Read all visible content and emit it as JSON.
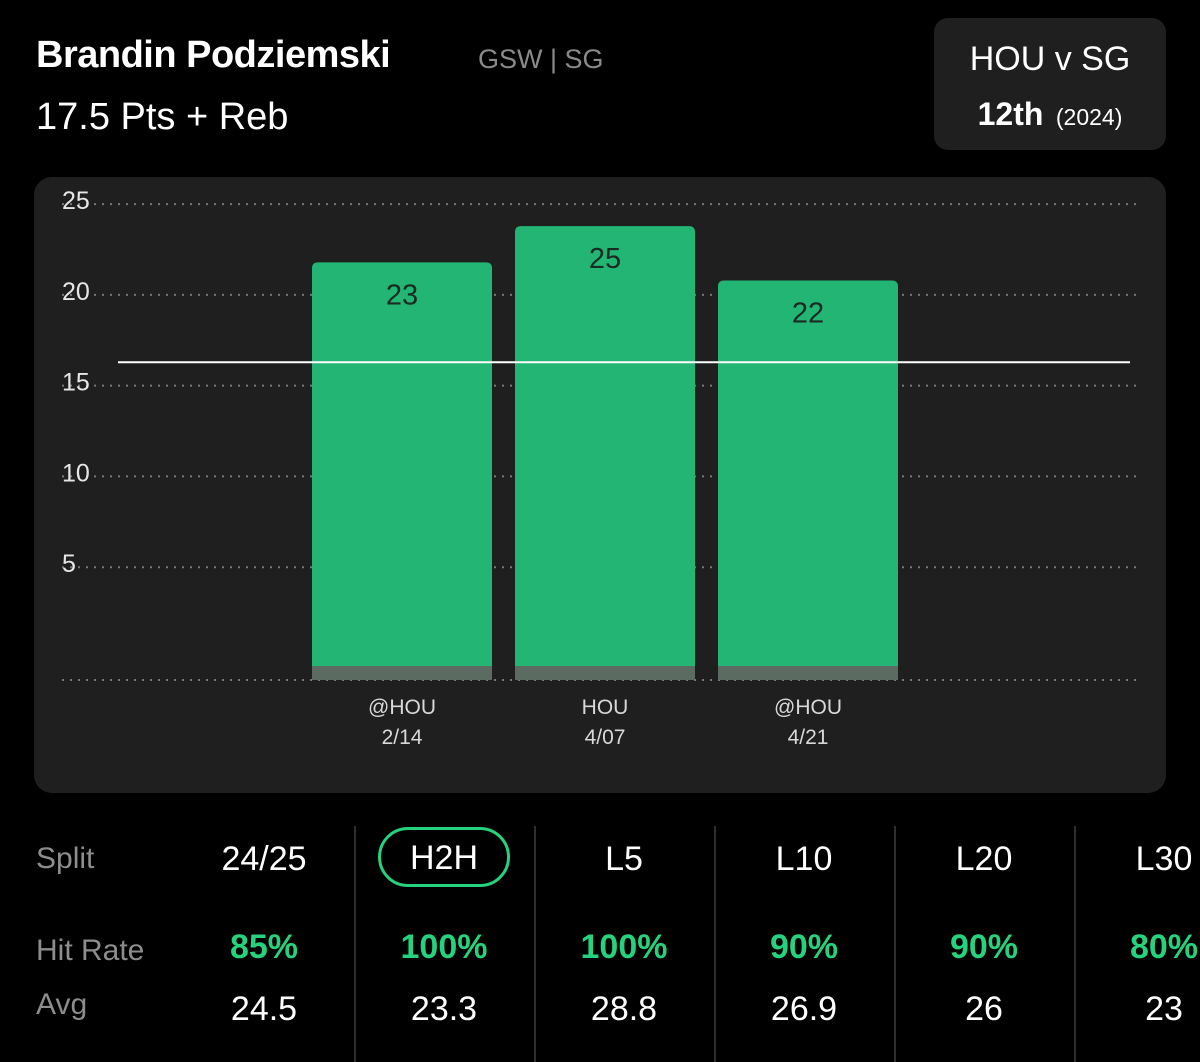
{
  "header": {
    "player_name": "Brandin Podziemski",
    "team_position": "GSW | SG",
    "prop": "17.5 Pts + Reb"
  },
  "matchup": {
    "title": "HOU v SG",
    "rank": "12th",
    "season": "(2024)"
  },
  "colors": {
    "accent": "#25d37e",
    "bar": "#22b573",
    "panel": "#1f1f1f",
    "label": "#8d8d8d"
  },
  "chart_data": {
    "type": "bar",
    "categories": [
      "@HOU 2/14",
      "HOU 4/07",
      "@HOU 4/21"
    ],
    "opponents": [
      "@HOU",
      "HOU",
      "@HOU"
    ],
    "dates": [
      "2/14",
      "4/07",
      "4/21"
    ],
    "values": [
      23,
      25,
      22
    ],
    "data_labels": [
      "23",
      "25",
      "22"
    ],
    "y_ticks": [
      "5",
      "10",
      "15",
      "20",
      "25"
    ],
    "ylim": [
      0,
      25.5
    ],
    "line_value": 17.5,
    "grid": "dotted horizontal"
  },
  "stats": {
    "labels": {
      "split": "Split",
      "hit_rate": "Hit Rate",
      "avg": "Avg"
    },
    "columns": [
      {
        "split": "24/25",
        "hit_rate": "85%",
        "avg": "24.5",
        "selected": false
      },
      {
        "split": "H2H",
        "hit_rate": "100%",
        "avg": "23.3",
        "selected": true
      },
      {
        "split": "L5",
        "hit_rate": "100%",
        "avg": "28.8",
        "selected": false
      },
      {
        "split": "L10",
        "hit_rate": "90%",
        "avg": "26.9",
        "selected": false
      },
      {
        "split": "L20",
        "hit_rate": "90%",
        "avg": "26",
        "selected": false
      },
      {
        "split": "L30",
        "hit_rate": "80%",
        "avg": "23",
        "selected": false
      }
    ]
  }
}
